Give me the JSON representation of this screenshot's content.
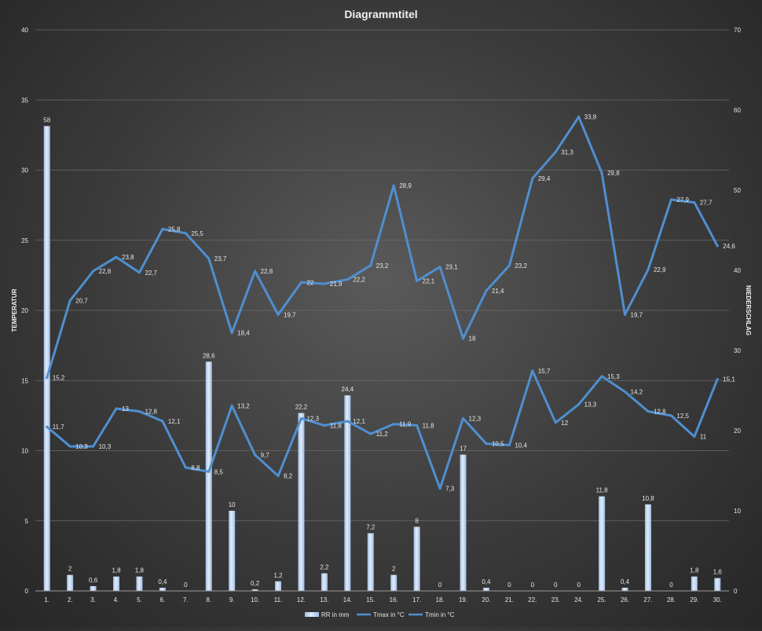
{
  "chart_data": {
    "type": "bar",
    "title": "Diagrammtitel",
    "ylabel_left": "TEMPERATUR",
    "ylabel_right": "NIEDERSCHLAG",
    "ylim_left": [
      0,
      40
    ],
    "ylim_right": [
      0,
      70
    ],
    "yticks_left": [
      0,
      5,
      10,
      15,
      20,
      25,
      30,
      35,
      40
    ],
    "yticks_right": [
      0,
      10,
      20,
      30,
      40,
      50,
      60,
      70
    ],
    "grid": true,
    "legend_position": "bottom",
    "categories": [
      "1.",
      "2.",
      "3.",
      "4.",
      "5.",
      "6.",
      "7.",
      "8.",
      "9.",
      "10.",
      "11.",
      "12.",
      "13.",
      "14.",
      "15.",
      "16.",
      "17.",
      "18.",
      "19.",
      "20.",
      "21.",
      "22.",
      "23.",
      "24.",
      "25.",
      "26.",
      "27.",
      "28.",
      "29.",
      "30."
    ],
    "series": [
      {
        "name": "RR in mm",
        "kind": "bar",
        "axis": "right",
        "color": "#bcd3f0",
        "values": [
          58,
          2,
          0.6,
          1.8,
          1.8,
          0.4,
          0,
          28.6,
          10,
          0.2,
          1.2,
          22.2,
          2.2,
          24.4,
          7.2,
          2,
          8,
          0,
          17,
          0.4,
          0,
          0,
          0,
          0,
          11.8,
          0.4,
          10.8,
          0,
          1.8,
          1.6
        ],
        "labels": [
          "58",
          "2",
          "0,6",
          "1,8",
          "1,8",
          "0,4",
          "0",
          "28,6",
          "10",
          "0,2",
          "1,2",
          "22,2",
          "2,2",
          "24,4",
          "7,2",
          "2",
          "8",
          "0",
          "17",
          "0,4",
          "0",
          "0",
          "0",
          "0",
          "11,8",
          "0,4",
          "10,8",
          "0",
          "1,8",
          "1,6"
        ]
      },
      {
        "name": "Tmax in °C",
        "kind": "line",
        "axis": "left",
        "color": "#4f8fd0",
        "values": [
          15.2,
          20.7,
          22.8,
          23.8,
          22.7,
          25.8,
          25.5,
          23.7,
          18.4,
          22.8,
          19.7,
          22,
          21.9,
          22.2,
          23.2,
          28.9,
          22.1,
          23.1,
          18,
          21.4,
          23.2,
          29.4,
          31.3,
          33.8,
          29.8,
          19.7,
          22.9,
          27.9,
          27.7,
          24.6
        ],
        "labels": [
          "15,2",
          "20,7",
          "22,8",
          "23,8",
          "22,7",
          "25,8",
          "25,5",
          "23,7",
          "18,4",
          "22,8",
          "19,7",
          "22",
          "21,9",
          "22,2",
          "23,2",
          "28,9",
          "22,1",
          "23,1",
          "18",
          "21,4",
          "23,2",
          "29,4",
          "31,3",
          "33,8",
          "29,8",
          "19,7",
          "22,9",
          "27,9",
          "27,7",
          "24,6"
        ]
      },
      {
        "name": "Tmin in °C",
        "kind": "line",
        "axis": "left",
        "color": "#4f8fd0",
        "values": [
          11.7,
          10.3,
          10.3,
          13,
          12.8,
          12.1,
          8.8,
          8.5,
          13.2,
          9.7,
          8.2,
          12.3,
          11.8,
          12.1,
          11.2,
          11.9,
          11.8,
          7.3,
          12.3,
          10.5,
          10.4,
          15.7,
          12,
          13.3,
          15.3,
          14.2,
          12.8,
          12.5,
          11,
          15.1
        ],
        "labels": [
          "11,7",
          "10,3",
          "10,3",
          "13",
          "12,8",
          "12,1",
          "8,8",
          "8,5",
          "13,2",
          "9,7",
          "8,2",
          "12,3",
          "11,8",
          "12,1",
          "11,2",
          "11,9",
          "11,8",
          "7,3",
          "12,3",
          "10,5",
          "10,4",
          "15,7",
          "12",
          "13,3",
          "15,3",
          "14,2",
          "12,8",
          "12,5",
          "11",
          "15,1"
        ]
      }
    ]
  }
}
